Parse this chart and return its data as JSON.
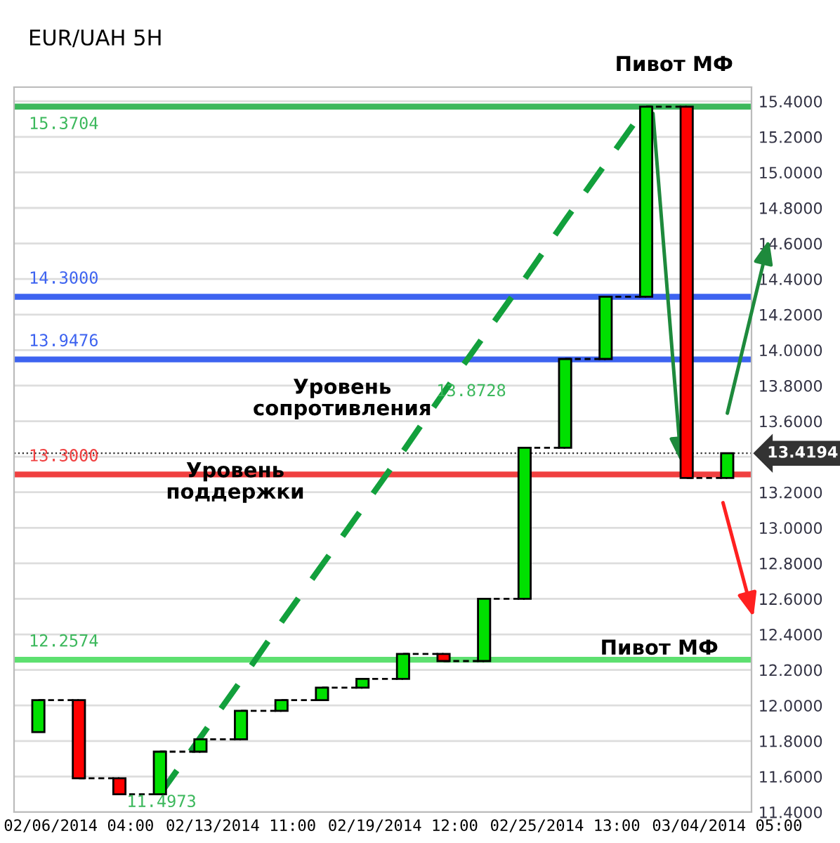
{
  "chart_data": {
    "type": "candlestick",
    "title": "EUR/UAH 5H",
    "categories": [
      null,
      "02/06/2014 04:00",
      null,
      null,
      null,
      "02/13/2014 11:00",
      null,
      null,
      null,
      "02/19/2014 12:00",
      null,
      null,
      null,
      "02/25/2014 13:00",
      null,
      null,
      null,
      "03/04/2014 05:00"
    ],
    "ohlc": [
      [
        11.85,
        12.03,
        11.85,
        12.03
      ],
      [
        12.03,
        12.03,
        11.59,
        11.59
      ],
      [
        11.59,
        11.59,
        11.5,
        11.5
      ],
      [
        11.5,
        11.74,
        11.5,
        11.74
      ],
      [
        11.74,
        11.81,
        11.74,
        11.81
      ],
      [
        11.81,
        11.97,
        11.81,
        11.97
      ],
      [
        11.97,
        12.03,
        11.97,
        12.03
      ],
      [
        12.03,
        12.1,
        12.03,
        12.1
      ],
      [
        12.1,
        12.15,
        12.1,
        12.15
      ],
      [
        12.15,
        12.29,
        12.15,
        12.29
      ],
      [
        12.29,
        12.29,
        12.25,
        12.25
      ],
      [
        12.25,
        12.6,
        12.25,
        12.6
      ],
      [
        12.6,
        13.45,
        12.6,
        13.45
      ],
      [
        13.45,
        13.95,
        13.45,
        13.95
      ],
      [
        13.95,
        14.3,
        13.95,
        14.3
      ],
      [
        14.3,
        15.37,
        14.3,
        15.37
      ],
      [
        15.37,
        15.37,
        13.28,
        13.28
      ],
      [
        13.28,
        13.42,
        13.28,
        13.42
      ]
    ],
    "colors": [
      "#00e000",
      "#ff0000",
      "#ff0000",
      "#00e000",
      "#00e000",
      "#00e000",
      "#00e000",
      "#00e000",
      "#00e000",
      "#00e000",
      "#ff0000",
      "#00e000",
      "#00e000",
      "#00e000",
      "#00e000",
      "#00e000",
      "#ff0000",
      "#00e000"
    ],
    "series": [
      {
        "type": "line",
        "color": "#12a03c",
        "line_style": "dashed",
        "values": [
          null,
          null,
          null,
          11.5,
          11.82,
          12.14,
          12.47,
          12.79,
          13.11,
          13.43,
          13.76,
          14.08,
          14.4,
          14.73,
          15.05,
          15.37,
          null,
          null
        ]
      }
    ],
    "ylim": [
      11.4,
      15.48
    ],
    "yticks": [
      {
        "value": 11.4,
        "label": "11.4000"
      },
      {
        "value": 11.6,
        "label": "11.6000"
      },
      {
        "value": 11.8,
        "label": "11.8000"
      },
      {
        "value": 12.0,
        "label": "12.0000"
      },
      {
        "value": 12.2,
        "label": "12.2000"
      },
      {
        "value": 12.4,
        "label": "12.4000"
      },
      {
        "value": 12.6,
        "label": "12.6000"
      },
      {
        "value": 12.8,
        "label": "12.8000"
      },
      {
        "value": 13.0,
        "label": "13.0000"
      },
      {
        "value": 13.2,
        "label": "13.2000"
      },
      {
        "value": 13.4,
        "label": null
      },
      {
        "value": 13.6,
        "label": "13.6000"
      },
      {
        "value": 13.8,
        "label": "13.8000"
      },
      {
        "value": 14.0,
        "label": "14.0000"
      },
      {
        "value": 14.2,
        "label": "14.2000"
      },
      {
        "value": 14.4,
        "label": "14.4000"
      },
      {
        "value": 14.6,
        "label": "14.6000"
      },
      {
        "value": 14.8,
        "label": "14.8000"
      },
      {
        "value": 15.0,
        "label": "15.0000"
      },
      {
        "value": 15.2,
        "label": "15.2000"
      },
      {
        "value": 15.4,
        "label": "15.4000"
      }
    ],
    "grid": "y",
    "ref_lines": [
      {
        "axis": "y",
        "value": 15.3704,
        "label": "15.3704",
        "color": "#3cb85c"
      },
      {
        "axis": "y",
        "value": 14.3,
        "label": "14.3000",
        "color": "#3d63f0"
      },
      {
        "axis": "y",
        "value": 13.9476,
        "label": "13.9476",
        "color": "#3d63f0"
      },
      {
        "axis": "y",
        "value": 13.3,
        "label": "13.3000",
        "color": "#f04040"
      },
      {
        "axis": "y",
        "value": 12.2574,
        "label": "12.2574",
        "color": "#5de070"
      },
      {
        "axis": "y",
        "value": 13.4194,
        "label": "13.4194",
        "color": "#333333",
        "line_style": "dotted"
      }
    ],
    "annotations": [
      "Пивот МФ",
      "Уровень\nсопротивления",
      "Уровень\nподдержки",
      "Пивот МФ",
      "13.8728",
      {
        "text": "11.4973",
        "y": 11.5
      }
    ]
  }
}
